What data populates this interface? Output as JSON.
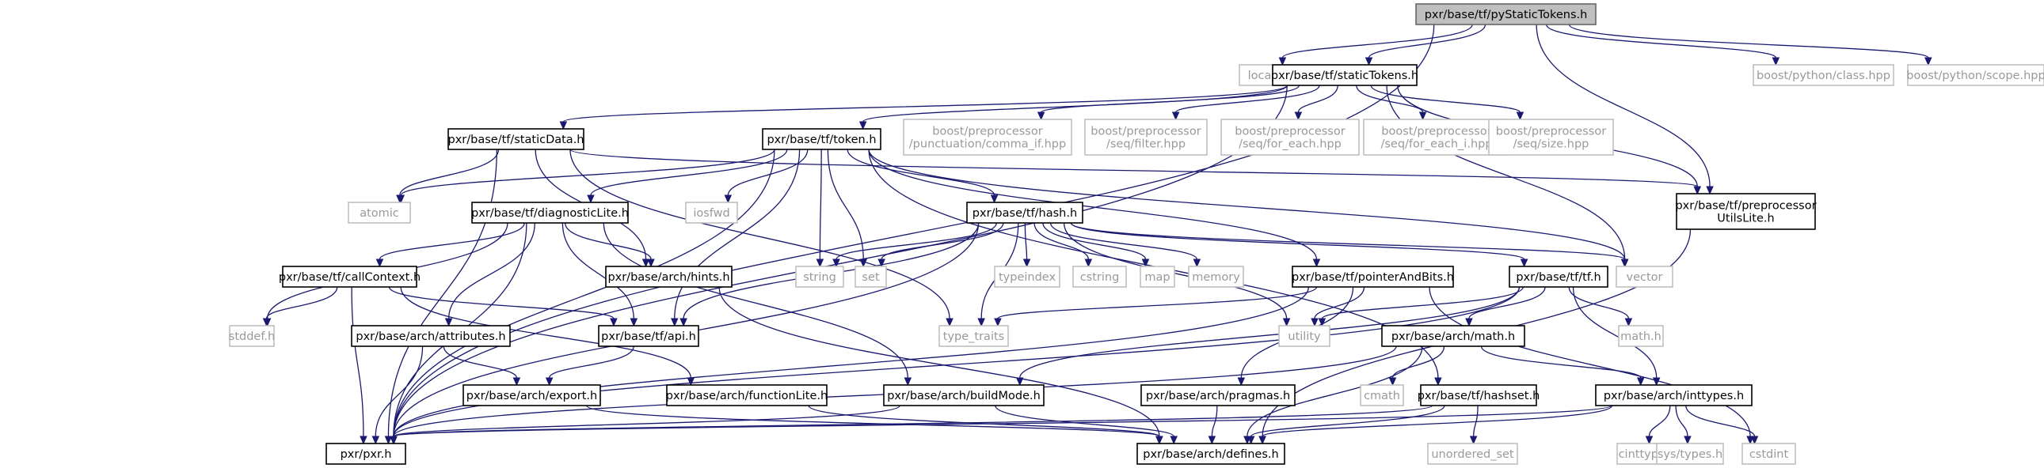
{
  "diagram": {
    "type": "include-dependency-graph",
    "root": "pxr/base/tf/pyStaticTokens.h",
    "nodes": [
      {
        "id": "pyStaticTokens",
        "lines": [
          "pxr/base/tf/pyStaticTokens.h"
        ],
        "kind": "root"
      },
      {
        "id": "locale",
        "lines": [
          "locale"
        ],
        "kind": "external"
      },
      {
        "id": "staticTokens",
        "lines": [
          "pxr/base/tf/staticTokens.h"
        ],
        "kind": "file"
      },
      {
        "id": "bp_class",
        "lines": [
          "boost/python/class.hpp"
        ],
        "kind": "external"
      },
      {
        "id": "bp_scope",
        "lines": [
          "boost/python/scope.hpp"
        ],
        "kind": "external"
      },
      {
        "id": "staticData",
        "lines": [
          "pxr/base/tf/staticData.h"
        ],
        "kind": "file"
      },
      {
        "id": "token",
        "lines": [
          "pxr/base/tf/token.h"
        ],
        "kind": "file"
      },
      {
        "id": "pp_comma",
        "lines": [
          "boost/preprocessor",
          "/punctuation/comma_if.hpp"
        ],
        "kind": "external"
      },
      {
        "id": "pp_filter",
        "lines": [
          "boost/preprocessor",
          "/seq/filter.hpp"
        ],
        "kind": "external"
      },
      {
        "id": "pp_foreach",
        "lines": [
          "boost/preprocessor",
          "/seq/for_each.hpp"
        ],
        "kind": "external"
      },
      {
        "id": "pp_foreach_i",
        "lines": [
          "boost/preprocessor",
          "/seq/for_each_i.hpp"
        ],
        "kind": "external"
      },
      {
        "id": "pp_size",
        "lines": [
          "boost/preprocessor",
          "/seq/size.hpp"
        ],
        "kind": "external"
      },
      {
        "id": "ppUtilsLite",
        "lines": [
          "pxr/base/tf/preprocessor",
          "UtilsLite.h"
        ],
        "kind": "file"
      },
      {
        "id": "atomic",
        "lines": [
          "atomic"
        ],
        "kind": "external"
      },
      {
        "id": "diagnosticLite",
        "lines": [
          "pxr/base/tf/diagnosticLite.h"
        ],
        "kind": "file"
      },
      {
        "id": "iosfwd",
        "lines": [
          "iosfwd"
        ],
        "kind": "external"
      },
      {
        "id": "hash",
        "lines": [
          "pxr/base/tf/hash.h"
        ],
        "kind": "file"
      },
      {
        "id": "string",
        "lines": [
          "string"
        ],
        "kind": "external"
      },
      {
        "id": "set",
        "lines": [
          "set"
        ],
        "kind": "external"
      },
      {
        "id": "typeindex",
        "lines": [
          "typeindex"
        ],
        "kind": "external"
      },
      {
        "id": "cstring",
        "lines": [
          "cstring"
        ],
        "kind": "external"
      },
      {
        "id": "map",
        "lines": [
          "map"
        ],
        "kind": "external"
      },
      {
        "id": "memory",
        "lines": [
          "memory"
        ],
        "kind": "external"
      },
      {
        "id": "vector",
        "lines": [
          "vector"
        ],
        "kind": "external"
      },
      {
        "id": "callContext",
        "lines": [
          "pxr/base/tf/callContext.h"
        ],
        "kind": "file"
      },
      {
        "id": "hints",
        "lines": [
          "pxr/base/arch/hints.h"
        ],
        "kind": "file"
      },
      {
        "id": "pointerAndBits",
        "lines": [
          "pxr/base/tf/pointerAndBits.h"
        ],
        "kind": "file"
      },
      {
        "id": "tf",
        "lines": [
          "pxr/base/tf/tf.h"
        ],
        "kind": "file"
      },
      {
        "id": "stddef",
        "lines": [
          "stddef.h"
        ],
        "kind": "external"
      },
      {
        "id": "type_traits",
        "lines": [
          "type_traits"
        ],
        "kind": "external"
      },
      {
        "id": "utility",
        "lines": [
          "utility"
        ],
        "kind": "external"
      },
      {
        "id": "math_h",
        "lines": [
          "math.h"
        ],
        "kind": "external"
      },
      {
        "id": "attributes",
        "lines": [
          "pxr/base/arch/attributes.h"
        ],
        "kind": "file"
      },
      {
        "id": "api",
        "lines": [
          "pxr/base/tf/api.h"
        ],
        "kind": "file"
      },
      {
        "id": "archMath",
        "lines": [
          "pxr/base/arch/math.h"
        ],
        "kind": "file"
      },
      {
        "id": "export",
        "lines": [
          "pxr/base/arch/export.h"
        ],
        "kind": "file"
      },
      {
        "id": "functionLite",
        "lines": [
          "pxr/base/arch/functionLite.h"
        ],
        "kind": "file"
      },
      {
        "id": "buildMode",
        "lines": [
          "pxr/base/arch/buildMode.h"
        ],
        "kind": "file"
      },
      {
        "id": "pragmas",
        "lines": [
          "pxr/base/arch/pragmas.h"
        ],
        "kind": "file"
      },
      {
        "id": "cmath",
        "lines": [
          "cmath"
        ],
        "kind": "external"
      },
      {
        "id": "hashset",
        "lines": [
          "pxr/base/tf/hashset.h"
        ],
        "kind": "file"
      },
      {
        "id": "inttypes",
        "lines": [
          "pxr/base/arch/inttypes.h"
        ],
        "kind": "file"
      },
      {
        "id": "pxr",
        "lines": [
          "pxr/pxr.h"
        ],
        "kind": "file"
      },
      {
        "id": "defines",
        "lines": [
          "pxr/base/arch/defines.h"
        ],
        "kind": "file"
      },
      {
        "id": "unordered_set",
        "lines": [
          "unordered_set"
        ],
        "kind": "external"
      },
      {
        "id": "cinttypes",
        "lines": [
          "cinttypes"
        ],
        "kind": "external"
      },
      {
        "id": "systypes",
        "lines": [
          "sys/types.h"
        ],
        "kind": "external"
      },
      {
        "id": "cstdint",
        "lines": [
          "cstdint"
        ],
        "kind": "external"
      }
    ],
    "edges": [
      [
        "pyStaticTokens",
        "locale"
      ],
      [
        "pyStaticTokens",
        "staticTokens"
      ],
      [
        "pyStaticTokens",
        "bp_class"
      ],
      [
        "pyStaticTokens",
        "bp_scope"
      ],
      [
        "pyStaticTokens",
        "ppUtilsLite"
      ],
      [
        "pyStaticTokens",
        "pxr"
      ],
      [
        "staticTokens",
        "staticData"
      ],
      [
        "staticTokens",
        "token"
      ],
      [
        "staticTokens",
        "pp_comma"
      ],
      [
        "staticTokens",
        "pp_filter"
      ],
      [
        "staticTokens",
        "pp_foreach"
      ],
      [
        "staticTokens",
        "pp_foreach_i"
      ],
      [
        "staticTokens",
        "pp_size"
      ],
      [
        "staticTokens",
        "ppUtilsLite"
      ],
      [
        "staticTokens",
        "vector"
      ],
      [
        "staticTokens",
        "pxr"
      ],
      [
        "staticData",
        "atomic"
      ],
      [
        "staticData",
        "hints"
      ],
      [
        "staticData",
        "type_traits"
      ],
      [
        "staticData",
        "ppUtilsLite"
      ],
      [
        "staticData",
        "pxr"
      ],
      [
        "token",
        "atomic"
      ],
      [
        "token",
        "diagnosticLite"
      ],
      [
        "token",
        "iosfwd"
      ],
      [
        "token",
        "string"
      ],
      [
        "token",
        "set"
      ],
      [
        "token",
        "hash"
      ],
      [
        "token",
        "vector"
      ],
      [
        "token",
        "pointerAndBits"
      ],
      [
        "token",
        "api"
      ],
      [
        "token",
        "hashset"
      ],
      [
        "token",
        "pxr"
      ],
      [
        "diagnosticLite",
        "callContext"
      ],
      [
        "diagnosticLite",
        "hints"
      ],
      [
        "diagnosticLite",
        "stddef"
      ],
      [
        "diagnosticLite",
        "attributes"
      ],
      [
        "diagnosticLite",
        "api"
      ],
      [
        "diagnosticLite",
        "buildMode"
      ],
      [
        "diagnosticLite",
        "pxr"
      ],
      [
        "hash",
        "string"
      ],
      [
        "hash",
        "set"
      ],
      [
        "hash",
        "typeindex"
      ],
      [
        "hash",
        "cstring"
      ],
      [
        "hash",
        "map"
      ],
      [
        "hash",
        "memory"
      ],
      [
        "hash",
        "vector"
      ],
      [
        "hash",
        "tf"
      ],
      [
        "hash",
        "utility"
      ],
      [
        "hash",
        "type_traits"
      ],
      [
        "hash",
        "api"
      ],
      [
        "hash",
        "pxr"
      ],
      [
        "callContext",
        "api"
      ],
      [
        "callContext",
        "functionLite"
      ],
      [
        "callContext",
        "stddef"
      ],
      [
        "callContext",
        "pxr"
      ],
      [
        "hints",
        "defines"
      ],
      [
        "pointerAndBits",
        "type_traits"
      ],
      [
        "pointerAndBits",
        "utility"
      ],
      [
        "pointerAndBits",
        "pragmas"
      ],
      [
        "pointerAndBits",
        "cstdint"
      ],
      [
        "pointerAndBits",
        "pxr"
      ],
      [
        "tf",
        "utility"
      ],
      [
        "tf",
        "math_h"
      ],
      [
        "tf",
        "archMath"
      ],
      [
        "tf",
        "inttypes"
      ],
      [
        "tf",
        "buildMode"
      ],
      [
        "tf",
        "pxr"
      ],
      [
        "attributes",
        "export"
      ],
      [
        "attributes",
        "pxr"
      ],
      [
        "api",
        "export"
      ],
      [
        "archMath",
        "cmath"
      ],
      [
        "archMath",
        "inttypes"
      ],
      [
        "archMath",
        "defines"
      ],
      [
        "archMath",
        "pxr"
      ],
      [
        "export",
        "defines"
      ],
      [
        "functionLite",
        "defines"
      ],
      [
        "buildMode",
        "defines"
      ],
      [
        "buildMode",
        "pxr"
      ],
      [
        "pragmas",
        "defines"
      ],
      [
        "hashset",
        "unordered_set"
      ],
      [
        "hashset",
        "defines"
      ],
      [
        "hashset",
        "pxr"
      ],
      [
        "inttypes",
        "cinttypes"
      ],
      [
        "inttypes",
        "systypes"
      ],
      [
        "inttypes",
        "cstdint"
      ],
      [
        "inttypes",
        "defines"
      ],
      [
        "inttypes",
        "pxr"
      ],
      [
        "ppUtilsLite",
        "defines"
      ]
    ]
  }
}
